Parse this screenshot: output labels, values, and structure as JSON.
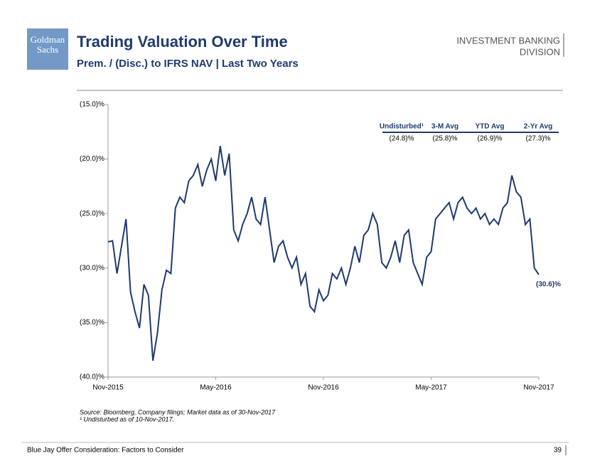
{
  "header": {
    "logo": [
      "Goldman",
      "Sachs"
    ],
    "title": "Trading Valuation Over Time",
    "subtitle": "Prem. / (Disc.) to IFRS NAV | Last Two Years",
    "division": [
      "INVESTMENT BANKING",
      "DIVISION"
    ]
  },
  "chart_data": {
    "type": "line",
    "color": "#1f3a6e",
    "categories": [
      "Nov-2015",
      null,
      null,
      null,
      null,
      null,
      null,
      null,
      null,
      null,
      null,
      null,
      null,
      null,
      null,
      null,
      null,
      null,
      null,
      null,
      null,
      null,
      null,
      null,
      "May-2016",
      null,
      null,
      null,
      null,
      null,
      null,
      null,
      null,
      null,
      null,
      null,
      null,
      null,
      null,
      null,
      null,
      null,
      null,
      null,
      null,
      null,
      null,
      null,
      "Nov-2016",
      null,
      null,
      null,
      null,
      null,
      null,
      null,
      null,
      null,
      null,
      null,
      null,
      null,
      null,
      null,
      null,
      null,
      null,
      null,
      null,
      null,
      null,
      null,
      "May-2017",
      null,
      null,
      null,
      null,
      null,
      null,
      null,
      null,
      null,
      null,
      null,
      null,
      null,
      null,
      null,
      null,
      null,
      null,
      null,
      null,
      null,
      null,
      null,
      "Nov-2017"
    ],
    "values": [
      -27.6,
      -27.5,
      -30.5,
      -28.0,
      -25.5,
      -32.2,
      -34.0,
      -35.5,
      -31.5,
      -32.5,
      -38.5,
      -36.0,
      -32.0,
      -30.2,
      -30.5,
      -24.5,
      -23.5,
      -24.0,
      -22.0,
      -21.5,
      -20.5,
      -22.5,
      -21.0,
      -20.0,
      -22.0,
      -18.8,
      -21.5,
      -19.5,
      -26.5,
      -27.5,
      -26.0,
      -25.0,
      -23.5,
      -25.5,
      -26.0,
      -23.5,
      -26.5,
      -29.5,
      -28.0,
      -27.5,
      -29.0,
      -30.0,
      -29.0,
      -31.5,
      -30.5,
      -33.5,
      -34.0,
      -32.0,
      -33.0,
      -32.5,
      -30.5,
      -31.0,
      -30.0,
      -31.5,
      -30.0,
      -28.0,
      -29.5,
      -27.0,
      -26.5,
      -25.0,
      -26.0,
      -29.5,
      -30.0,
      -29.0,
      -27.5,
      -29.5,
      -27.0,
      -26.5,
      -29.5,
      -30.5,
      -31.5,
      -29.0,
      -28.5,
      -25.5,
      -25.0,
      -24.5,
      -24.0,
      -25.5,
      -24.0,
      -23.5,
      -24.5,
      -25.0,
      -24.5,
      -25.5,
      -25.0,
      -26.0,
      -25.5,
      -26.0,
      -24.5,
      -24.0,
      -21.5,
      -23.0,
      -23.5,
      -26.0,
      -25.5,
      -30.0,
      -30.6
    ],
    "ylim": [
      -40,
      -15
    ],
    "yticks": [
      {
        "value": -15,
        "label": "(15.0)%"
      },
      {
        "value": -20,
        "label": "(20.0)%"
      },
      {
        "value": -25,
        "label": "(25.0)%"
      },
      {
        "value": -30,
        "label": "(30.0)%"
      },
      {
        "value": -35,
        "label": "(35.0)%"
      },
      {
        "value": -40,
        "label": "(40.0)%"
      }
    ],
    "annotation": "(30.6)%",
    "summary_table": {
      "headers": [
        "Undisturbed¹",
        "3-M Avg",
        "YTD Avg",
        "2-Yr Avg"
      ],
      "row": [
        "(24.8)%",
        "(25.8)%",
        "(26.9)%",
        "(27.3)%"
      ]
    }
  },
  "notes": [
    "Source: Bloomberg, Company filings; Market data as of 30-Nov-2017",
    "¹ Undisturbed as of 10-Nov-2017."
  ],
  "footer": {
    "text": "Blue Jay Offer Consideration: Factors to Consider",
    "page": "39"
  }
}
